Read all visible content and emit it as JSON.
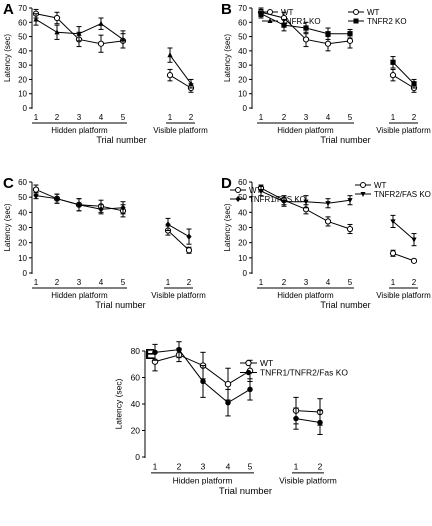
{
  "chart_data": [
    {
      "panel_label": "A",
      "type": "line",
      "ylabel": "Latency (sec)",
      "xlabel": "Trial number",
      "ylim": [
        0,
        70
      ],
      "yticks": [
        0,
        10,
        20,
        30,
        40,
        50,
        60,
        70
      ],
      "categories": [
        "1",
        "2",
        "3",
        "4",
        "5",
        "1",
        "2"
      ],
      "groups": [
        "Hidden platform",
        "Visible platform"
      ],
      "legend_position": "top-right",
      "series": [
        {
          "name": "WT",
          "marker": "open-circle",
          "values": [
            66,
            63,
            48,
            45,
            47,
            23,
            14
          ],
          "errors": [
            3,
            4,
            5,
            6,
            5,
            4,
            3
          ]
        },
        {
          "name": "TNFR1 KO",
          "marker": "filled-triangle",
          "values": [
            62,
            53,
            52,
            59,
            48,
            37,
            17
          ],
          "errors": [
            4,
            5,
            5,
            4,
            6,
            5,
            3
          ]
        }
      ]
    },
    {
      "panel_label": "B",
      "type": "line",
      "ylabel": "Latency (sec)",
      "xlabel": "Trial number",
      "ylim": [
        0,
        70
      ],
      "yticks": [
        0,
        10,
        20,
        30,
        40,
        50,
        60,
        70
      ],
      "categories": [
        "1",
        "2",
        "3",
        "4",
        "5",
        "1",
        "2"
      ],
      "groups": [
        "Hidden platform",
        "Visible platform"
      ],
      "legend_position": "top-right",
      "series": [
        {
          "name": "WT",
          "marker": "open-circle",
          "values": [
            67,
            63,
            48,
            45,
            47,
            23,
            14
          ],
          "errors": [
            3,
            4,
            5,
            5,
            5,
            4,
            3
          ]
        },
        {
          "name": "TNFR2 KO",
          "marker": "filled-square",
          "values": [
            66,
            58,
            56,
            52,
            52,
            32,
            17
          ],
          "errors": [
            3,
            4,
            4,
            4,
            3,
            4,
            3
          ]
        }
      ]
    },
    {
      "panel_label": "C",
      "type": "line",
      "ylabel": "Latency (sec)",
      "xlabel": "Trial number",
      "ylim": [
        0,
        60
      ],
      "yticks": [
        0,
        10,
        20,
        30,
        40,
        50,
        60
      ],
      "categories": [
        "1",
        "2",
        "3",
        "4",
        "5",
        "1",
        "2"
      ],
      "groups": [
        "Hidden platform",
        "Visible platform"
      ],
      "legend_position": "top-right",
      "series": [
        {
          "name": "WT",
          "marker": "open-circle",
          "values": [
            55,
            49,
            45,
            44,
            41,
            28,
            15
          ],
          "errors": [
            3,
            3,
            4,
            4,
            4,
            3,
            2
          ]
        },
        {
          "name": "TNFR1/FAS KO",
          "marker": "filled-diamond",
          "values": [
            51,
            49,
            45,
            42,
            43,
            32,
            24
          ],
          "errors": [
            2,
            3,
            4,
            3,
            4,
            4,
            5
          ]
        }
      ]
    },
    {
      "panel_label": "D",
      "type": "line",
      "ylabel": "Latency (sec)",
      "xlabel": "Trial number",
      "ylim": [
        0,
        60
      ],
      "yticks": [
        0,
        10,
        20,
        30,
        40,
        50,
        60
      ],
      "categories": [
        "1",
        "2",
        "3",
        "4",
        "5",
        "1",
        "2"
      ],
      "groups": [
        "Hidden platform",
        "Visible platform"
      ],
      "legend_position": "top-right",
      "series": [
        {
          "name": "WT",
          "marker": "open-circle",
          "values": [
            56,
            48,
            42,
            34,
            29,
            13,
            8
          ],
          "errors": [
            2,
            3,
            3,
            3,
            3,
            2,
            1
          ]
        },
        {
          "name": "TNFR2/FAS KO",
          "marker": "filled-triangle-down",
          "values": [
            54,
            47,
            47,
            46,
            48,
            34,
            22
          ],
          "errors": [
            3,
            3,
            4,
            3,
            3,
            4,
            4
          ]
        }
      ]
    },
    {
      "panel_label": "E",
      "type": "line",
      "ylabel": "Latency (sec)",
      "xlabel": "Trial number",
      "ylim": [
        0,
        80
      ],
      "yticks": [
        0,
        20,
        40,
        60,
        80
      ],
      "categories": [
        "1",
        "2",
        "3",
        "4",
        "5",
        "1",
        "2"
      ],
      "groups": [
        "Hidden platform",
        "Visible platform"
      ],
      "legend_position": "top-right",
      "series": [
        {
          "name": "WT",
          "marker": "open-circle",
          "values": [
            72,
            77,
            69,
            55,
            65,
            35,
            34
          ],
          "errors": [
            7,
            5,
            10,
            12,
            8,
            10,
            10
          ]
        },
        {
          "name": "TNFR1/TNFR2/Fas KO",
          "marker": "filled-circle",
          "values": [
            79,
            81,
            57,
            41,
            51,
            29,
            26
          ],
          "errors": [
            6,
            6,
            12,
            10,
            8,
            8,
            9
          ]
        }
      ]
    }
  ]
}
